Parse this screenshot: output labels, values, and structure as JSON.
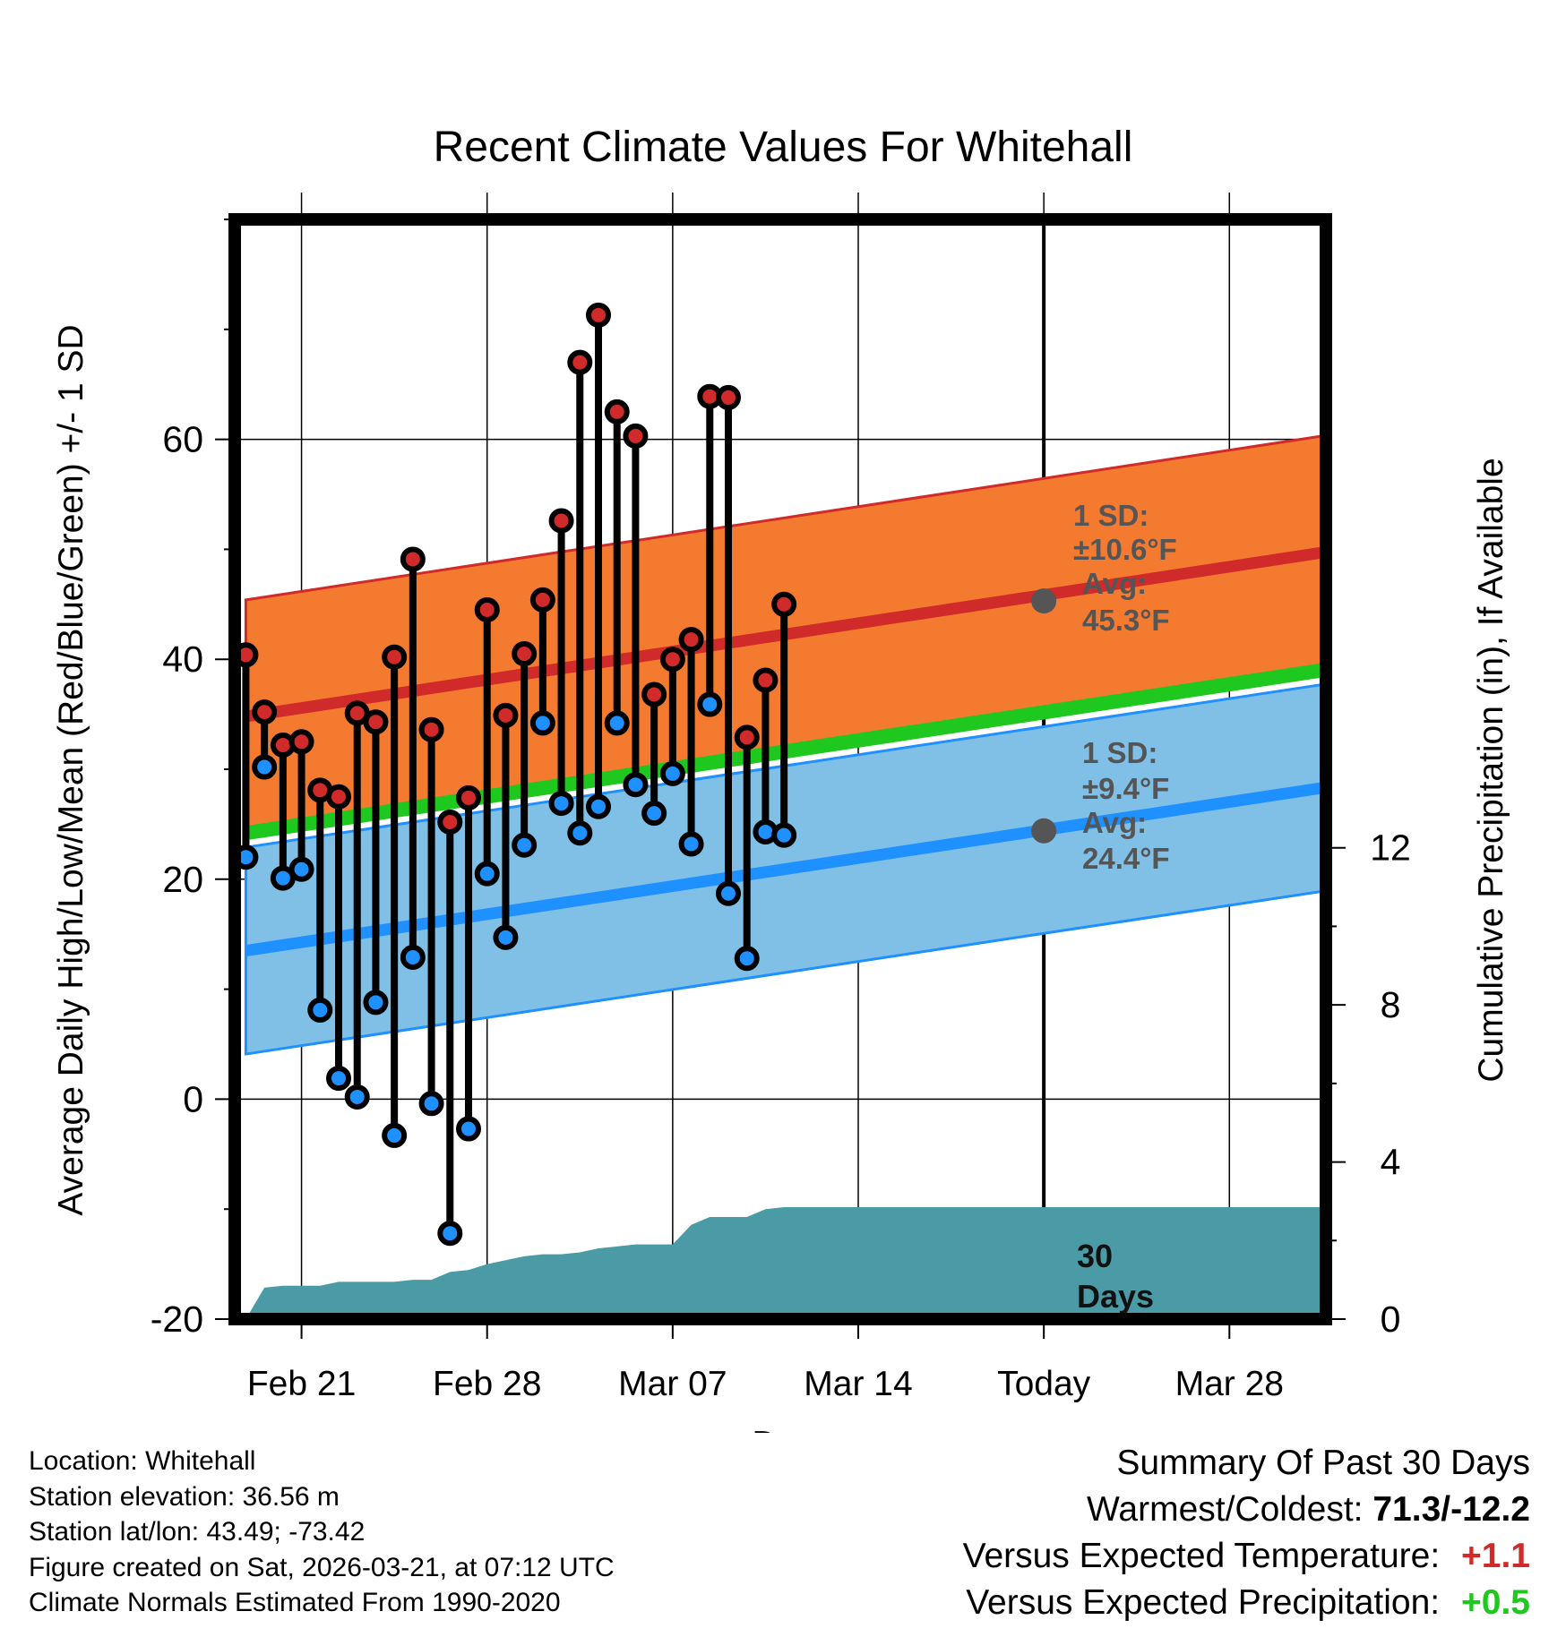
{
  "title": "Recent Climate Values For Whitehall",
  "chart_data": {
    "type": "line",
    "title": "Recent Climate Values For Whitehall",
    "xlabel": "Day",
    "ylabel": "Average Daily High/Low/Mean (Red/Blue/Green) +/- 1 SD",
    "y2label": "Cumulative Precipitation (in), If Available",
    "ylim": [
      -20,
      80
    ],
    "y2lim": [
      0,
      28
    ],
    "xlim": [
      -1.6,
      57.2
    ],
    "yticks": [
      -20,
      0,
      20,
      40,
      60
    ],
    "y2ticks": [
      0,
      4,
      8,
      12
    ],
    "xtick_positions": [
      2,
      12,
      22,
      32,
      42,
      52
    ],
    "xtick_labels": [
      "Feb 21",
      "Feb 28",
      "Mar 07",
      "Mar 14",
      "Today",
      "Mar 28"
    ],
    "today_index": 42,
    "today_label": "30 Days",
    "high_lows": {
      "days": [
        -1,
        0,
        1,
        2,
        3,
        4,
        5,
        6,
        7,
        8,
        9,
        10,
        11,
        12,
        13,
        14,
        15,
        16,
        17,
        18,
        19,
        20,
        21,
        22,
        23,
        24,
        25,
        26,
        27,
        28
      ],
      "highs": [
        40.4,
        35.2,
        32.2,
        32.5,
        28.1,
        27.5,
        35.1,
        34.3,
        40.2,
        49.1,
        33.6,
        25.2,
        27.4,
        44.5,
        34.9,
        40.5,
        45.4,
        52.6,
        67.0,
        71.3,
        62.5,
        60.3,
        36.8,
        40.0,
        41.8,
        63.9,
        63.8,
        32.9,
        38.1,
        45.0
      ],
      "lows": [
        22.0,
        30.2,
        20.1,
        20.9,
        8.1,
        1.9,
        0.2,
        8.8,
        -3.3,
        12.9,
        -0.4,
        -12.2,
        -2.7,
        20.5,
        14.7,
        23.1,
        34.2,
        26.9,
        24.2,
        26.6,
        34.2,
        28.6,
        26.0,
        29.6,
        23.2,
        35.9,
        18.7,
        12.8,
        24.3,
        24.0
      ]
    },
    "normal_high": {
      "x": [
        -1,
        57
      ],
      "y": [
        34.8,
        49.7
      ]
    },
    "normal_high_sd": 10.6,
    "normal_low": {
      "x": [
        -1,
        57
      ],
      "y": [
        13.5,
        28.3
      ]
    },
    "normal_low_sd": 9.4,
    "normal_mean": {
      "x": [
        -1,
        57
      ],
      "y": [
        24.2,
        39.0
      ]
    },
    "precipitation": {
      "days": [
        -1,
        0,
        1,
        2,
        3,
        4,
        5,
        6,
        7,
        8,
        9,
        10,
        11,
        12,
        13,
        14,
        15,
        16,
        17,
        18,
        19,
        20,
        21,
        22,
        23,
        24,
        25,
        26,
        27,
        28,
        29,
        57
      ],
      "cumulative": [
        0.0,
        0.8,
        0.85,
        0.85,
        0.85,
        0.95,
        0.95,
        0.95,
        0.95,
        1.0,
        1.0,
        1.2,
        1.25,
        1.4,
        1.5,
        1.6,
        1.65,
        1.65,
        1.7,
        1.8,
        1.85,
        1.9,
        1.9,
        1.9,
        2.4,
        2.6,
        2.6,
        2.6,
        2.8,
        2.85,
        2.85,
        2.85
      ]
    },
    "annotations": {
      "high_sd_label": "1 SD:",
      "high_sd_value": "±10.6°F",
      "high_avg_label": "Avg:",
      "high_avg_value": "45.3°F",
      "high_avg_at_today": 45.3,
      "low_sd_label": "1 SD:",
      "low_sd_value": "±9.4°F",
      "low_avg_label": "Avg:",
      "low_avg_value": "24.4°F",
      "low_avg_at_today": 24.4,
      "today_text_1": "30",
      "today_text_2": "Days"
    },
    "colors": {
      "high_band": "#f47a30",
      "high_line": "#d12a2a",
      "low_band": "#80bfe6",
      "low_line": "#1e90ff",
      "mean_line": "#1ec81e",
      "precip": "#4a9ba5",
      "high_dot": "#d12a2a",
      "low_dot": "#1e90ff",
      "annot": "#555555"
    }
  },
  "info": {
    "location": "Location: Whitehall",
    "elevation": "Station elevation: 36.56 m",
    "latlon": "Station lat/lon: 43.49; -73.42",
    "created": "Figure created on Sat, 2026-03-21, at 07:12 UTC",
    "normals": "Climate Normals Estimated From 1990-2020"
  },
  "summary": {
    "title": "Summary Of Past 30 Days",
    "warmest_label": "Warmest/Coldest:",
    "warmest_value": "71.3/-12.2",
    "temp_label": "Versus Expected Temperature:",
    "temp_value": "+1.1",
    "temp_color": "#d12a2a",
    "precip_label": "Versus Expected Precipitation:",
    "precip_value": "+0.5",
    "precip_color": "#1ec81e"
  }
}
